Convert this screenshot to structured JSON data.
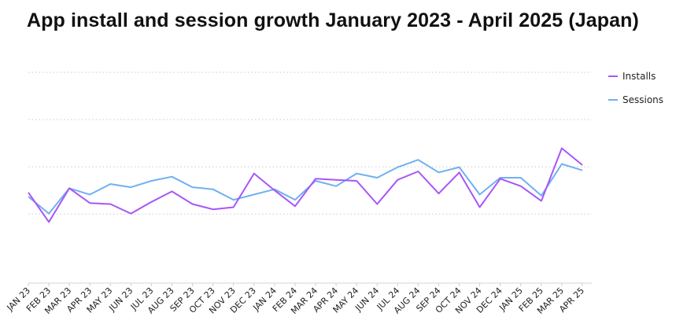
{
  "title": "App install and session growth January 2023 - April 2025 (Japan)",
  "chart_data": {
    "type": "line",
    "title": "App install and session growth January 2023 - April 2025 (Japan)",
    "xlabel": "",
    "ylabel": "",
    "categories": [
      "JAN 23",
      "FEB 23",
      "MAR 23",
      "APR 23",
      "MAY 23",
      "JUN 23",
      "JUL 23",
      "AUG 23",
      "SEP 23",
      "OCT 23",
      "NOV 23",
      "DEC 23",
      "JAN 24",
      "FEB 24",
      "MAR 24",
      "APR 24",
      "MAY 24",
      "JUN 24",
      "JUL 24",
      "AUG 24",
      "SEP 24",
      "OCT 24",
      "NOV 24",
      "DEC 24",
      "JAN 25",
      "FEB 25",
      "MAR 25",
      "APR 25"
    ],
    "ylim": [
      0,
      100
    ],
    "grid": true,
    "legend_position": "top-right",
    "series": [
      {
        "name": "Installs",
        "color": "#a855f7",
        "values": [
          43,
          29,
          45,
          38,
          37.5,
          33,
          38.5,
          43.5,
          37.5,
          35,
          36,
          52,
          44,
          36.5,
          49.5,
          49,
          48.5,
          37.5,
          49,
          53,
          42.5,
          52.5,
          36,
          49.5,
          46,
          39,
          64,
          56
        ]
      },
      {
        "name": "Sessions",
        "color": "#70b0f0",
        "values": [
          41,
          33,
          45,
          42,
          47,
          45.5,
          48.5,
          50.5,
          45.5,
          44.5,
          39.5,
          42,
          44.5,
          39.5,
          48.5,
          46,
          52,
          50,
          55,
          58.5,
          52.5,
          55,
          42,
          50,
          50,
          41.5,
          56.5,
          53.5
        ]
      }
    ]
  }
}
